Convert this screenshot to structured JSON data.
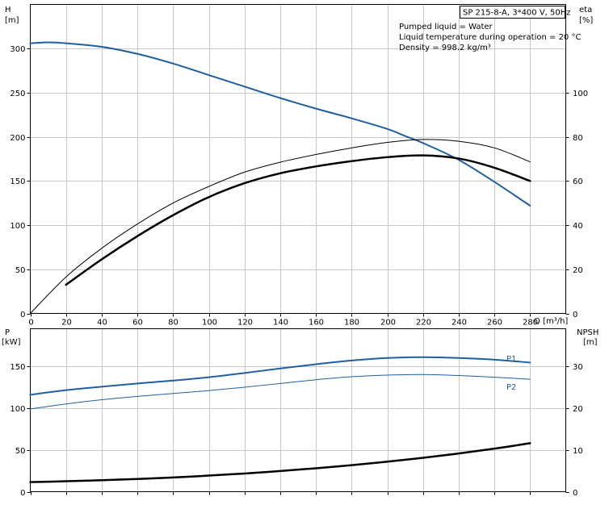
{
  "chart_data": [
    {
      "type": "line",
      "title": "SP 215-8-A, 3*400 V, 50Hz",
      "info": [
        "Pumped liquid = Water",
        "Liquid temperature during operation = 20 °C",
        "Density = 998.2 kg/m³"
      ],
      "xlabel": "Q [m³/h]",
      "x_ticks": [
        0,
        20,
        40,
        60,
        80,
        100,
        120,
        140,
        160,
        180,
        200,
        220,
        240,
        260,
        280
      ],
      "xlim": [
        0,
        300
      ],
      "left_axis": {
        "label_top": "H",
        "label_unit": "[m]",
        "ticks": [
          0,
          50,
          100,
          150,
          200,
          250,
          300
        ],
        "ylim": [
          0,
          350
        ]
      },
      "right_axis": {
        "label_top": "eta",
        "label_unit": "[%]",
        "ticks": [
          0,
          20,
          40,
          60,
          80,
          100
        ],
        "ylim": [
          0,
          140
        ]
      },
      "grid": true,
      "series": [
        {
          "axis": "left",
          "color": "#1f5fa0",
          "width": 2,
          "x": [
            0,
            10,
            20,
            40,
            60,
            80,
            100,
            120,
            140,
            160,
            180,
            200,
            210,
            220,
            240,
            260,
            280
          ],
          "values": [
            306,
            307,
            306,
            302,
            294,
            283,
            270,
            257,
            244,
            232,
            221,
            209,
            201,
            193,
            174,
            149,
            122
          ]
        },
        {
          "axis": "right",
          "color": "#000000",
          "width": 1,
          "x": [
            0,
            20,
            40,
            60,
            80,
            100,
            120,
            140,
            160,
            180,
            200,
            220,
            240,
            260,
            280
          ],
          "values": [
            0,
            16.5,
            29.5,
            40.5,
            50,
            57.5,
            64,
            68.5,
            72,
            75,
            77.5,
            78.8,
            78,
            75,
            68.7
          ]
        },
        {
          "axis": "right",
          "color": "#000000",
          "width": 2.5,
          "x": [
            20,
            40,
            60,
            80,
            100,
            120,
            140,
            160,
            180,
            200,
            220,
            240,
            260,
            280
          ],
          "values": [
            13,
            24.5,
            35,
            44.5,
            52.7,
            59,
            63.5,
            66.6,
            69,
            70.8,
            71.6,
            70.2,
            66,
            60
          ]
        }
      ]
    },
    {
      "type": "line",
      "xlim": [
        0,
        300
      ],
      "left_axis": {
        "label_top": "P",
        "label_unit": "[kW]",
        "ticks": [
          0,
          50,
          100,
          150
        ],
        "ylim": [
          0,
          195
        ]
      },
      "right_axis": {
        "label_top": "NPSH",
        "label_unit": "[m]",
        "ticks": [
          0,
          10,
          20,
          30
        ],
        "ylim": [
          0,
          39
        ]
      },
      "grid": true,
      "series": [
        {
          "name": "P1",
          "axis": "left",
          "color": "#1f5fa0",
          "width": 2,
          "x": [
            0,
            20,
            40,
            60,
            80,
            100,
            120,
            140,
            160,
            180,
            200,
            220,
            240,
            260,
            280
          ],
          "values": [
            116,
            121.5,
            125.6,
            129.5,
            133,
            137,
            142,
            147.5,
            152.5,
            157,
            160,
            161,
            160,
            158,
            154.5
          ]
        },
        {
          "name": "P2",
          "axis": "left",
          "color": "#1f5fa0",
          "width": 1,
          "x": [
            0,
            20,
            40,
            60,
            80,
            100,
            120,
            140,
            160,
            180,
            200,
            220,
            240,
            260,
            280
          ],
          "values": [
            99,
            105,
            110,
            114,
            117.5,
            121,
            125,
            129.5,
            134,
            137.5,
            139.5,
            140.2,
            139,
            137,
            134.5
          ]
        },
        {
          "axis": "right",
          "color": "#000000",
          "width": 2.5,
          "x": [
            0,
            20,
            40,
            60,
            80,
            100,
            120,
            140,
            160,
            180,
            200,
            220,
            240,
            260,
            280
          ],
          "values": [
            2.3,
            2.5,
            2.75,
            3.05,
            3.4,
            3.85,
            4.35,
            4.95,
            5.6,
            6.35,
            7.2,
            8.1,
            9.15,
            10.3,
            11.6
          ]
        }
      ]
    }
  ]
}
